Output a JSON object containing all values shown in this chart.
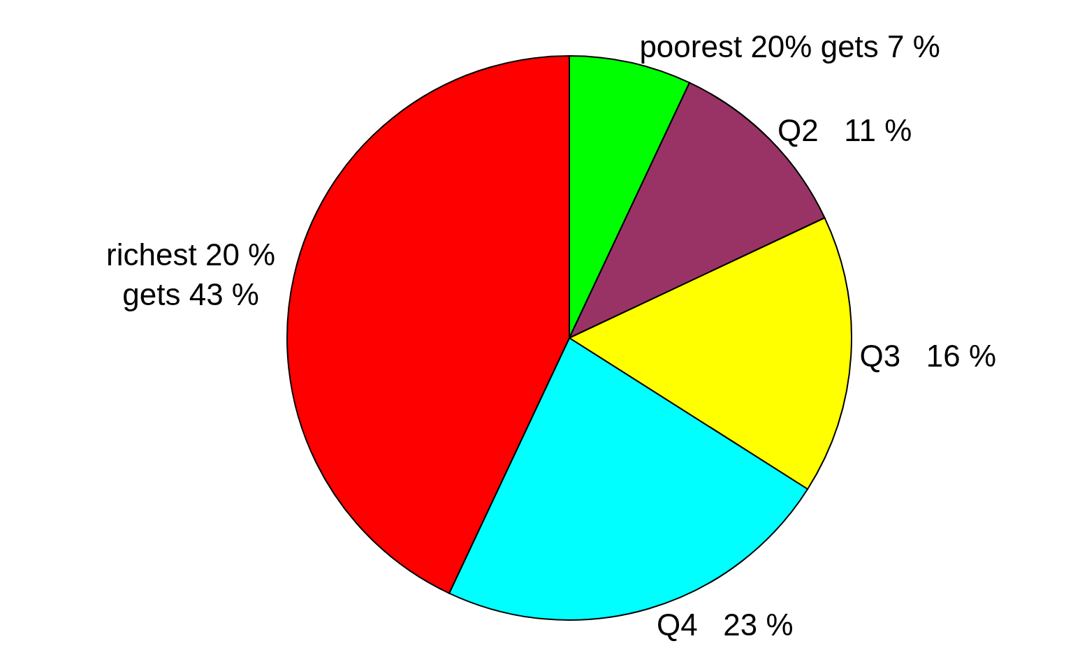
{
  "chart_data": {
    "type": "pie",
    "categories": [
      "poorest 20% gets 7 %",
      "Q2   11 %",
      "Q3   16 %",
      "Q4   23 %",
      "richest 20 %\ngets 43 %"
    ],
    "values": [
      7,
      11,
      16,
      23,
      43
    ],
    "colors": [
      "#00ff00",
      "#993366",
      "#ffff00",
      "#00ffff",
      "#ff0000"
    ],
    "legend": false
  }
}
